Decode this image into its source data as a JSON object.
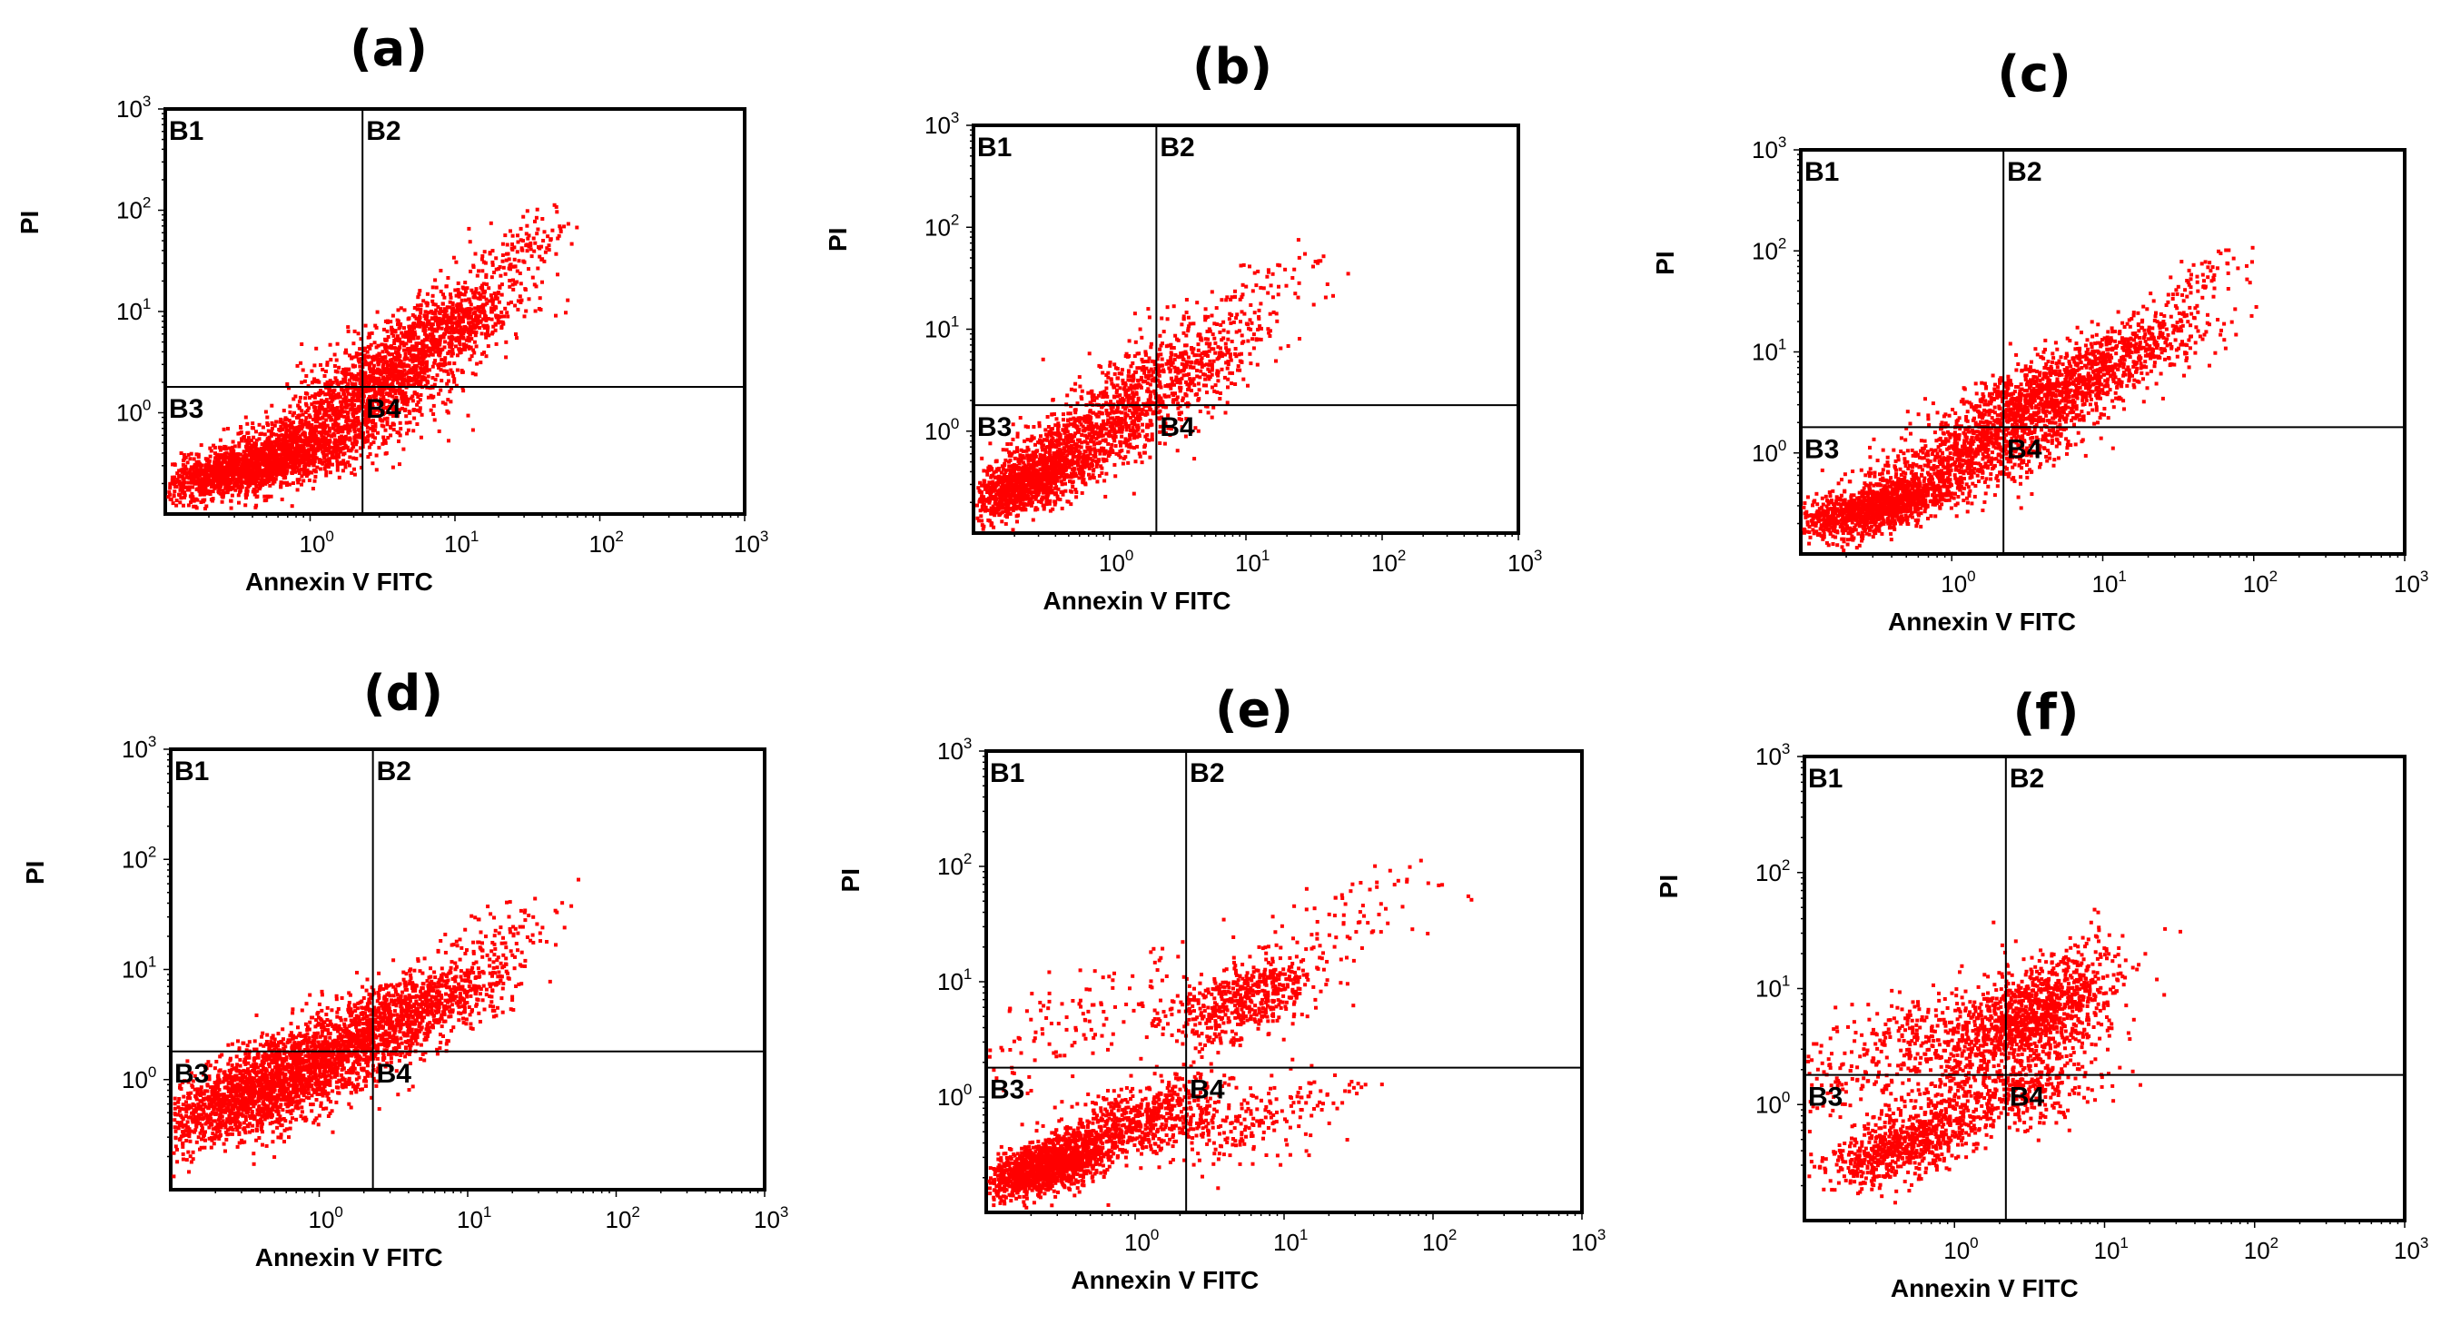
{
  "figure": {
    "dot_color": "#ff0000",
    "axis_color": "#000000"
  },
  "chart_data": [
    {
      "type": "scatter",
      "panel": "(a)",
      "xlabel": "Annexin V FITC",
      "ylabel": "PI",
      "xscale": "log",
      "yscale": "log",
      "xlim": [
        0.1,
        1000
      ],
      "ylim": [
        0.1,
        1000
      ],
      "x_ticks": [
        {
          "base": "10",
          "exp": "0"
        },
        {
          "base": "10",
          "exp": "1"
        },
        {
          "base": "10",
          "exp": "2"
        },
        {
          "base": "10",
          "exp": "3"
        }
      ],
      "y_ticks": [
        {
          "base": "10",
          "exp": "0"
        },
        {
          "base": "10",
          "exp": "1"
        },
        {
          "base": "10",
          "exp": "2"
        },
        {
          "base": "10",
          "exp": "3"
        }
      ],
      "gate": {
        "x": 2.3,
        "y": 1.8
      },
      "quadrants": [
        "B1",
        "B2",
        "B3",
        "B4"
      ],
      "clusters": [
        {
          "cx": 0.35,
          "cy": 0.28,
          "sx": 0.3,
          "sy": 0.22,
          "n": 1400
        },
        {
          "cx": 1.2,
          "cy": 0.6,
          "sx": 0.35,
          "sy": 0.35,
          "n": 1000
        },
        {
          "cx": 3.5,
          "cy": 2.5,
          "sx": 0.3,
          "sy": 0.35,
          "n": 900
        },
        {
          "cx": 10,
          "cy": 8,
          "sx": 0.28,
          "sy": 0.3,
          "n": 600
        },
        {
          "cx": 25,
          "cy": 40,
          "sx": 0.2,
          "sy": 0.25,
          "n": 120
        }
      ]
    },
    {
      "type": "scatter",
      "panel": "(b)",
      "xlabel": "Annexin V FITC",
      "ylabel": "PI",
      "xscale": "log",
      "yscale": "log",
      "xlim": [
        0.1,
        1000
      ],
      "ylim": [
        0.1,
        1000
      ],
      "x_ticks": [
        {
          "base": "10",
          "exp": "0"
        },
        {
          "base": "10",
          "exp": "1"
        },
        {
          "base": "10",
          "exp": "2"
        },
        {
          "base": "10",
          "exp": "3"
        }
      ],
      "y_ticks": [
        {
          "base": "10",
          "exp": "0"
        },
        {
          "base": "10",
          "exp": "1"
        },
        {
          "base": "10",
          "exp": "2"
        },
        {
          "base": "10",
          "exp": "3"
        }
      ],
      "gate": {
        "x": 2.2,
        "y": 1.8
      },
      "quadrants": [
        "B1",
        "B2",
        "B3",
        "B4"
      ],
      "clusters": [
        {
          "cx": 0.25,
          "cy": 0.3,
          "sx": 0.22,
          "sy": 0.25,
          "n": 1100
        },
        {
          "cx": 0.8,
          "cy": 1.0,
          "sx": 0.35,
          "sy": 0.4,
          "n": 800
        },
        {
          "cx": 3.0,
          "cy": 4.0,
          "sx": 0.35,
          "sy": 0.4,
          "n": 500
        },
        {
          "cx": 12,
          "cy": 20,
          "sx": 0.3,
          "sy": 0.35,
          "n": 80
        }
      ]
    },
    {
      "type": "scatter",
      "panel": "(c)",
      "xlabel": "Annexin V FITC",
      "ylabel": "PI",
      "xscale": "log",
      "yscale": "log",
      "xlim": [
        0.1,
        1000
      ],
      "ylim": [
        0.1,
        1000
      ],
      "x_ticks": [
        {
          "base": "10",
          "exp": "0"
        },
        {
          "base": "10",
          "exp": "1"
        },
        {
          "base": "10",
          "exp": "2"
        },
        {
          "base": "10",
          "exp": "3"
        }
      ],
      "y_ticks": [
        {
          "base": "10",
          "exp": "0"
        },
        {
          "base": "10",
          "exp": "1"
        },
        {
          "base": "10",
          "exp": "2"
        },
        {
          "base": "10",
          "exp": "3"
        }
      ],
      "gate": {
        "x": 2.2,
        "y": 1.8
      },
      "quadrants": [
        "B1",
        "B2",
        "B3",
        "B4"
      ],
      "clusters": [
        {
          "cx": 0.3,
          "cy": 0.28,
          "sx": 0.28,
          "sy": 0.22,
          "n": 1200
        },
        {
          "cx": 1.3,
          "cy": 0.9,
          "sx": 0.35,
          "sy": 0.35,
          "n": 800
        },
        {
          "cx": 4.0,
          "cy": 3.5,
          "sx": 0.3,
          "sy": 0.32,
          "n": 900
        },
        {
          "cx": 14,
          "cy": 10,
          "sx": 0.3,
          "sy": 0.3,
          "n": 500
        },
        {
          "cx": 45,
          "cy": 50,
          "sx": 0.15,
          "sy": 0.2,
          "n": 60
        }
      ]
    },
    {
      "type": "scatter",
      "panel": "(d)",
      "xlabel": "Annexin V FITC",
      "ylabel": "PI",
      "xscale": "log",
      "yscale": "log",
      "xlim": [
        0.1,
        1000
      ],
      "ylim": [
        0.1,
        1000
      ],
      "x_ticks": [
        {
          "base": "10",
          "exp": "0"
        },
        {
          "base": "10",
          "exp": "1"
        },
        {
          "base": "10",
          "exp": "2"
        },
        {
          "base": "10",
          "exp": "3"
        }
      ],
      "y_ticks": [
        {
          "base": "10",
          "exp": "0"
        },
        {
          "base": "10",
          "exp": "1"
        },
        {
          "base": "10",
          "exp": "2"
        },
        {
          "base": "10",
          "exp": "3"
        }
      ],
      "gate": {
        "x": 2.3,
        "y": 1.8
      },
      "quadrants": [
        "B1",
        "B2",
        "B3",
        "B4"
      ],
      "clusters": [
        {
          "cx": 0.35,
          "cy": 0.7,
          "sx": 0.35,
          "sy": 0.35,
          "n": 1500
        },
        {
          "cx": 1.2,
          "cy": 1.8,
          "sx": 0.35,
          "sy": 0.35,
          "n": 1100
        },
        {
          "cx": 5.0,
          "cy": 5.0,
          "sx": 0.3,
          "sy": 0.3,
          "n": 700
        },
        {
          "cx": 18,
          "cy": 20,
          "sx": 0.22,
          "sy": 0.25,
          "n": 90
        }
      ]
    },
    {
      "type": "scatter",
      "panel": "(e)",
      "xlabel": "Annexin V FITC",
      "ylabel": "PI",
      "xscale": "log",
      "yscale": "log",
      "xlim": [
        0.1,
        1000
      ],
      "ylim": [
        0.1,
        1000
      ],
      "x_ticks": [
        {
          "base": "10",
          "exp": "0"
        },
        {
          "base": "10",
          "exp": "1"
        },
        {
          "base": "10",
          "exp": "2"
        },
        {
          "base": "10",
          "exp": "3"
        }
      ],
      "y_ticks": [
        {
          "base": "10",
          "exp": "0"
        },
        {
          "base": "10",
          "exp": "1"
        },
        {
          "base": "10",
          "exp": "2"
        },
        {
          "base": "10",
          "exp": "3"
        }
      ],
      "gate": {
        "x": 2.2,
        "y": 1.8
      },
      "quadrants": [
        "B1",
        "B2",
        "B3",
        "B4"
      ],
      "clusters": [
        {
          "cx": 0.25,
          "cy": 0.25,
          "sx": 0.22,
          "sy": 0.2,
          "n": 1300
        },
        {
          "cx": 1.0,
          "cy": 0.6,
          "sx": 0.3,
          "sy": 0.28,
          "n": 700
        },
        {
          "cx": 5.5,
          "cy": 7.0,
          "sx": 0.25,
          "sy": 0.28,
          "n": 550
        },
        {
          "cx": 6.0,
          "cy": 0.6,
          "sx": 0.35,
          "sy": 0.3,
          "n": 200
        },
        {
          "cx": 0.5,
          "cy": 5.0,
          "sx": 0.45,
          "sy": 0.4,
          "n": 150
        },
        {
          "cx": 30,
          "cy": 40,
          "sx": 0.3,
          "sy": 0.35,
          "n": 70
        }
      ]
    },
    {
      "type": "scatter",
      "panel": "(f)",
      "xlabel": "Annexin V FITC",
      "ylabel": "PI",
      "xscale": "log",
      "yscale": "log",
      "xlim": [
        0.1,
        1000
      ],
      "ylim": [
        0.1,
        1000
      ],
      "x_ticks": [
        {
          "base": "10",
          "exp": "0"
        },
        {
          "base": "10",
          "exp": "1"
        },
        {
          "base": "10",
          "exp": "2"
        },
        {
          "base": "10",
          "exp": "3"
        }
      ],
      "y_ticks": [
        {
          "base": "10",
          "exp": "0"
        },
        {
          "base": "10",
          "exp": "1"
        },
        {
          "base": "10",
          "exp": "2"
        },
        {
          "base": "10",
          "exp": "3"
        }
      ],
      "gate": {
        "x": 2.2,
        "y": 1.8
      },
      "quadrants": [
        "B1",
        "B2",
        "B3",
        "B4"
      ],
      "clusters": [
        {
          "cx": 0.45,
          "cy": 0.45,
          "sx": 0.25,
          "sy": 0.25,
          "n": 700
        },
        {
          "cx": 3.5,
          "cy": 6.0,
          "sx": 0.28,
          "sy": 0.4,
          "n": 1100
        },
        {
          "cx": 0.6,
          "cy": 3.0,
          "sx": 0.45,
          "sy": 0.45,
          "n": 500
        },
        {
          "cx": 2.5,
          "cy": 1.2,
          "sx": 0.3,
          "sy": 0.3,
          "n": 400
        }
      ]
    }
  ]
}
